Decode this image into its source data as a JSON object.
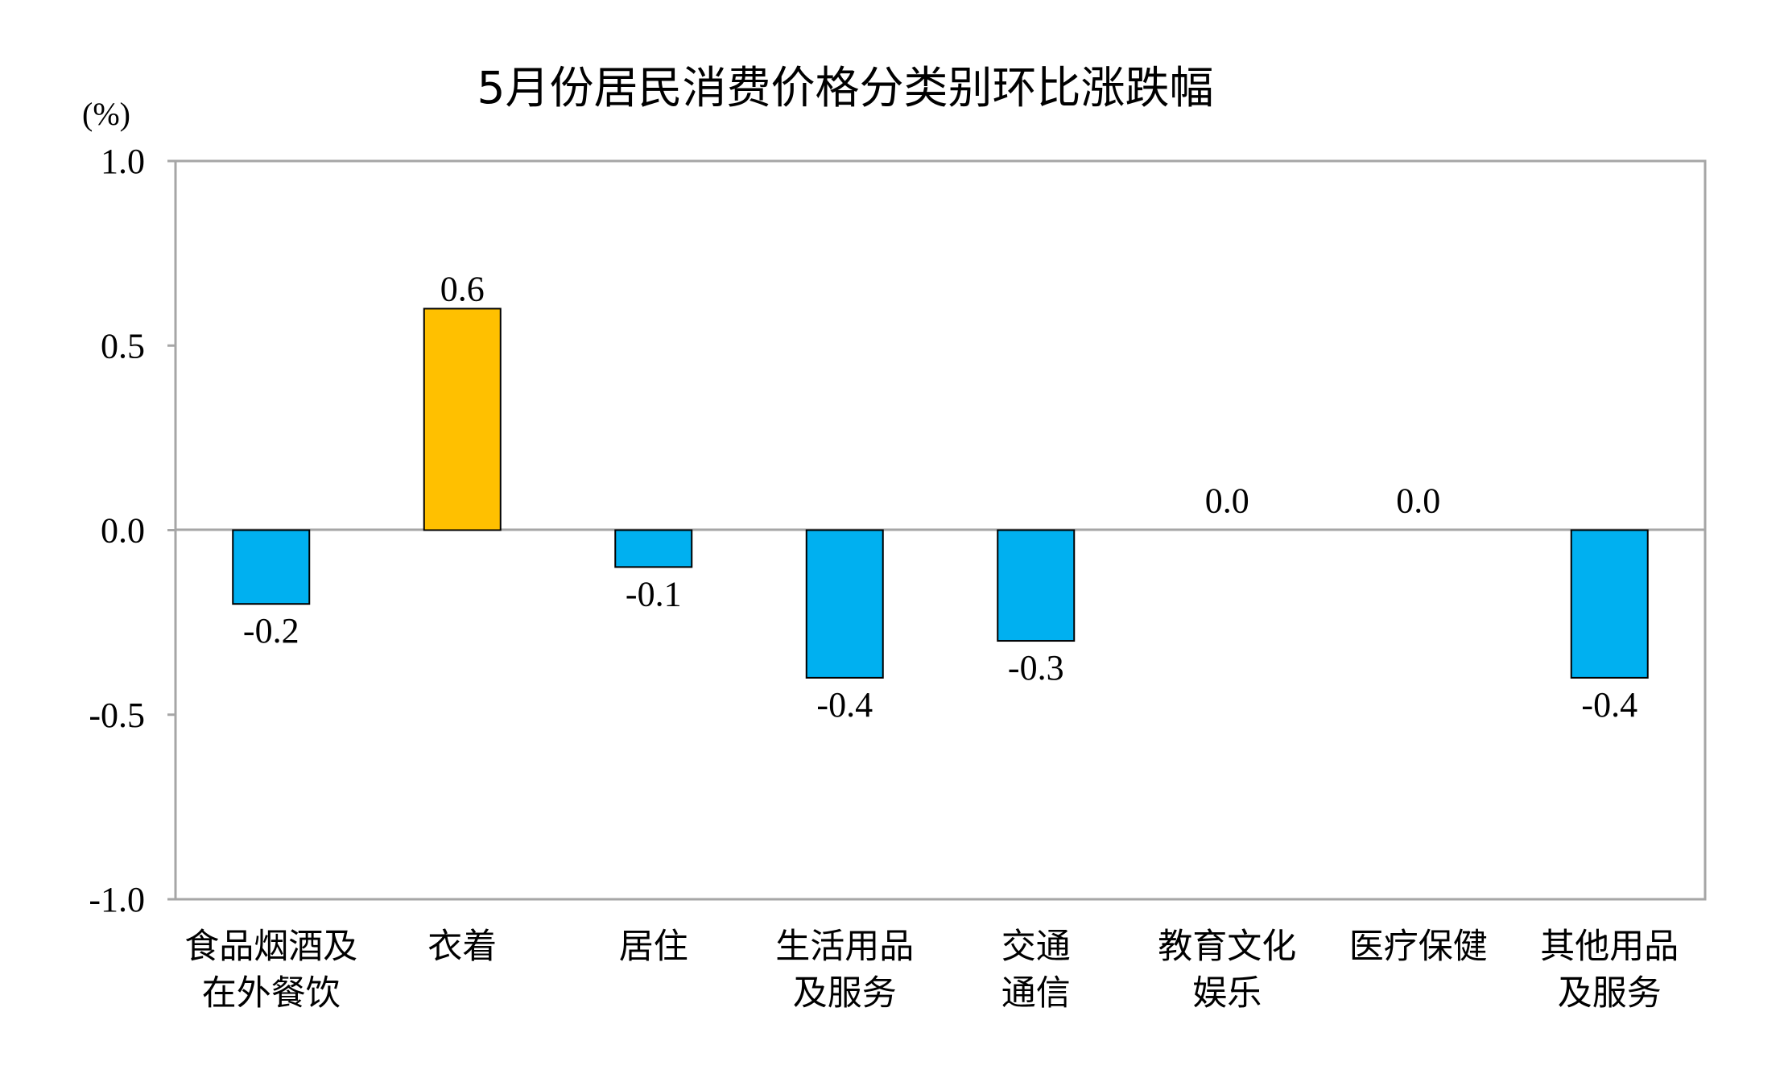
{
  "chart_data": {
    "type": "bar",
    "title": "5月份居民消费价格分类别环比涨跌幅",
    "unit_label": "(%)",
    "xlabel": "",
    "ylabel": "",
    "ylim": [
      -1.0,
      1.0
    ],
    "yticks": [
      1.0,
      0.5,
      0.0,
      -0.5,
      -1.0
    ],
    "ytick_labels": [
      "1.0",
      "0.5",
      "0.0",
      "-0.5",
      "-1.0"
    ],
    "grid": false,
    "categories": [
      [
        "食品烟酒及",
        "在外餐饮"
      ],
      [
        "衣着"
      ],
      [
        "居住"
      ],
      [
        "生活用品",
        "及服务"
      ],
      [
        "交通",
        "通信"
      ],
      [
        "教育文化",
        "娱乐"
      ],
      [
        "医疗保健"
      ],
      [
        "其他用品",
        "及服务"
      ]
    ],
    "values": [
      -0.2,
      0.6,
      -0.1,
      -0.4,
      -0.3,
      0.0,
      0.0,
      -0.4
    ],
    "value_labels": [
      "-0.2",
      "0.6",
      "-0.1",
      "-0.4",
      "-0.3",
      "0.0",
      "0.0",
      "-0.4"
    ],
    "colors": {
      "positive": "#FFC000",
      "negative": "#00B0F0",
      "bar_outline": "#000000",
      "frame": "#A6A6A6",
      "zero_line": "#A6A6A6"
    }
  }
}
